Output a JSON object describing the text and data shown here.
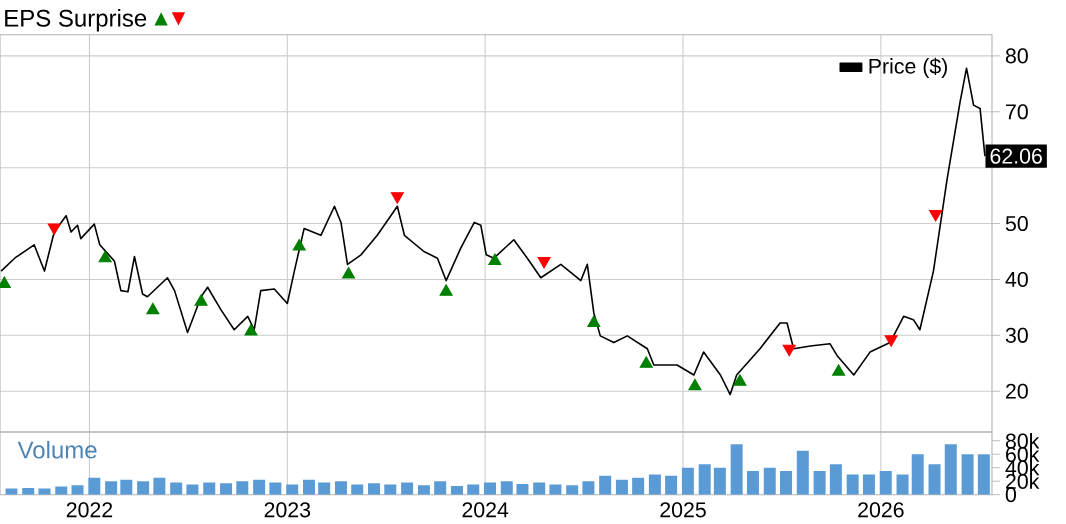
{
  "chart_data": [
    {
      "type": "line",
      "title": "EPS Surprise",
      "legend": "top right",
      "grid": true,
      "tick_labels": "y",
      "xlim": [
        "2021-07-20",
        "2026-07-25"
      ],
      "xticks": [
        "2022",
        "2023",
        "2024",
        "2025",
        "2026"
      ],
      "ylim": [
        12.7,
        83.8
      ],
      "yticks": [
        20,
        30,
        40,
        50,
        {
          "value": 60,
          "label": null
        },
        70,
        80
      ],
      "annotations": [
        {
          "text": "62.06",
          "x": "2026-07-12",
          "y": 62.06
        }
      ],
      "series": [
        {
          "name": "Price ($)",
          "color": "#000000",
          "x": [
            "2021-07-22",
            "2021-08-16",
            "2021-09-21",
            "2021-10-10",
            "2021-10-28",
            "2021-11-19",
            "2021-11-28",
            "2021-12-10",
            "2021-12-16",
            "2022-01-10",
            "2022-01-20",
            "2022-02-16",
            "2022-02-28",
            "2022-03-13",
            "2022-03-25",
            "2022-04-09",
            "2022-04-18",
            "2022-05-25",
            "2022-06-07",
            "2022-07-01",
            "2022-07-26",
            "2022-08-07",
            "2022-09-01",
            "2022-09-25",
            "2022-10-20",
            "2022-11-01",
            "2022-11-13",
            "2022-12-08",
            "2023-01-01",
            "2023-01-14",
            "2023-02-01",
            "2023-03-04",
            "2023-03-29",
            "2023-04-10",
            "2023-04-22",
            "2023-05-17",
            "2023-06-16",
            "2023-07-11",
            "2023-07-23",
            "2023-08-05",
            "2023-09-10",
            "2023-10-05",
            "2023-10-21",
            "2023-11-17",
            "2023-12-12",
            "2023-12-24",
            "2024-01-03",
            "2024-01-17",
            "2024-02-23",
            "2024-03-19",
            "2024-04-13",
            "2024-05-20",
            "2024-06-26",
            "2024-07-08",
            "2024-07-20",
            "2024-08-01",
            "2024-08-26",
            "2024-09-20",
            "2024-10-27",
            "2024-11-08",
            "2024-12-21",
            "2025-01-21",
            "2025-02-08",
            "2025-03-11",
            "2025-03-29",
            "2025-04-10",
            "2025-05-23",
            "2025-06-29",
            "2025-07-12",
            "2025-07-24",
            "2025-08-24",
            "2025-09-29",
            "2025-10-12",
            "2025-11-12",
            "2025-12-12",
            "2026-01-18",
            "2026-02-12",
            "2026-03-02",
            "2026-03-14",
            "2026-04-08",
            "2026-05-03",
            "2026-05-27",
            "2026-06-08",
            "2026-06-21",
            "2026-07-03",
            "2026-07-12"
          ],
          "values": [
            41.5,
            43.8,
            46.2,
            41.5,
            48.5,
            51.4,
            48.5,
            49.7,
            47.3,
            49.9,
            46.2,
            43.3,
            38.0,
            37.8,
            44.1,
            37.4,
            36.9,
            40.3,
            38.0,
            30.5,
            36.9,
            38.6,
            34.5,
            31.0,
            33.4,
            31.0,
            38.0,
            38.3,
            35.7,
            41.5,
            49.1,
            47.9,
            53.1,
            50.2,
            42.7,
            44.4,
            47.9,
            51.4,
            53.1,
            47.9,
            45.0,
            43.8,
            39.8,
            45.6,
            50.2,
            49.7,
            44.4,
            43.8,
            47.1,
            43.8,
            40.3,
            42.7,
            39.8,
            42.7,
            34.0,
            29.9,
            28.7,
            29.9,
            27.6,
            24.7,
            24.7,
            22.9,
            27.0,
            22.9,
            19.4,
            22.9,
            27.6,
            32.2,
            32.2,
            27.6,
            28.1,
            28.5,
            26.4,
            22.9,
            27.0,
            28.7,
            33.4,
            32.8,
            31.0,
            41.5,
            57.8,
            71.7,
            77.8,
            71.2,
            70.6,
            62.06
          ]
        },
        {
          "type": "scatter",
          "color": "#008000",
          "marker": "triangle",
          "x": [
            "2021-07-28",
            "2022-01-30",
            "2022-04-28",
            "2022-07-26",
            "2022-10-26",
            "2023-01-23",
            "2023-04-24",
            "2023-10-21",
            "2024-01-19",
            "2024-07-20",
            "2024-10-25",
            "2025-01-23",
            "2025-04-16",
            "2025-10-15"
          ],
          "values": [
            39.2,
            43.8,
            34.5,
            36.0,
            30.7,
            45.9,
            40.9,
            37.8,
            43.3,
            32.2,
            24.9,
            20.9,
            21.7,
            23.5
          ]
        },
        {
          "type": "scatter",
          "color": "#ff0000",
          "marker": "triangle",
          "x": [
            "2021-10-28",
            "2023-07-23",
            "2024-04-19",
            "2025-07-16",
            "2026-01-20",
            "2026-04-12"
          ],
          "values": [
            49.3,
            54.9,
            43.3,
            27.6,
            29.3,
            51.7
          ]
        }
      ]
    },
    {
      "type": "bar",
      "title": "Volume",
      "grid": "x",
      "xlim": [
        "2021-07-20",
        "2026-07-25"
      ],
      "xticks": [
        "2022",
        "2023",
        "2024",
        "2025",
        "2026"
      ],
      "ylim": [
        0,
        93000
      ],
      "yticks": [
        0,
        {
          "value": 20000,
          "label": "20k"
        },
        {
          "value": 40000,
          "label": "40k"
        },
        {
          "value": 60000,
          "label": "60k"
        },
        {
          "value": 80000,
          "label": "80k"
        }
      ],
      "series": [
        {
          "color": "#5b9bd5",
          "x": [
            "2021-08-10",
            "2021-09-10",
            "2021-10-10",
            "2021-11-10",
            "2021-12-10",
            "2022-01-10",
            "2022-02-10",
            "2022-03-10",
            "2022-04-10",
            "2022-05-10",
            "2022-06-10",
            "2022-07-10",
            "2022-08-10",
            "2022-09-10",
            "2022-10-10",
            "2022-11-10",
            "2022-12-10",
            "2023-01-10",
            "2023-02-10",
            "2023-03-10",
            "2023-04-10",
            "2023-05-10",
            "2023-06-10",
            "2023-07-10",
            "2023-08-10",
            "2023-09-10",
            "2023-10-10",
            "2023-11-10",
            "2023-12-10",
            "2024-01-10",
            "2024-02-10",
            "2024-03-10",
            "2024-04-10",
            "2024-05-10",
            "2024-06-10",
            "2024-07-10",
            "2024-08-10",
            "2024-09-10",
            "2024-10-10",
            "2024-11-10",
            "2024-12-10",
            "2025-01-10",
            "2025-02-10",
            "2025-03-10",
            "2025-04-10",
            "2025-05-10",
            "2025-06-10",
            "2025-07-10",
            "2025-08-10",
            "2025-09-10",
            "2025-10-10",
            "2025-11-10",
            "2025-12-10",
            "2026-01-10",
            "2026-02-10",
            "2026-03-10",
            "2026-04-10",
            "2026-05-10",
            "2026-06-10",
            "2026-07-10"
          ],
          "values": [
            9000,
            10000,
            9000,
            12000,
            14000,
            25000,
            20000,
            22000,
            20000,
            25000,
            18000,
            15000,
            18000,
            17000,
            20000,
            22000,
            18000,
            15000,
            22000,
            18000,
            20000,
            15000,
            17000,
            15000,
            18000,
            14000,
            20000,
            13000,
            15000,
            18000,
            20000,
            16000,
            18000,
            15000,
            14000,
            20000,
            28000,
            22000,
            25000,
            30000,
            28000,
            40000,
            45000,
            40000,
            75000,
            35000,
            40000,
            35000,
            65000,
            35000,
            45000,
            30000,
            30000,
            35000,
            30000,
            60000,
            45000,
            75000,
            60000,
            60000
          ]
        }
      ]
    }
  ]
}
